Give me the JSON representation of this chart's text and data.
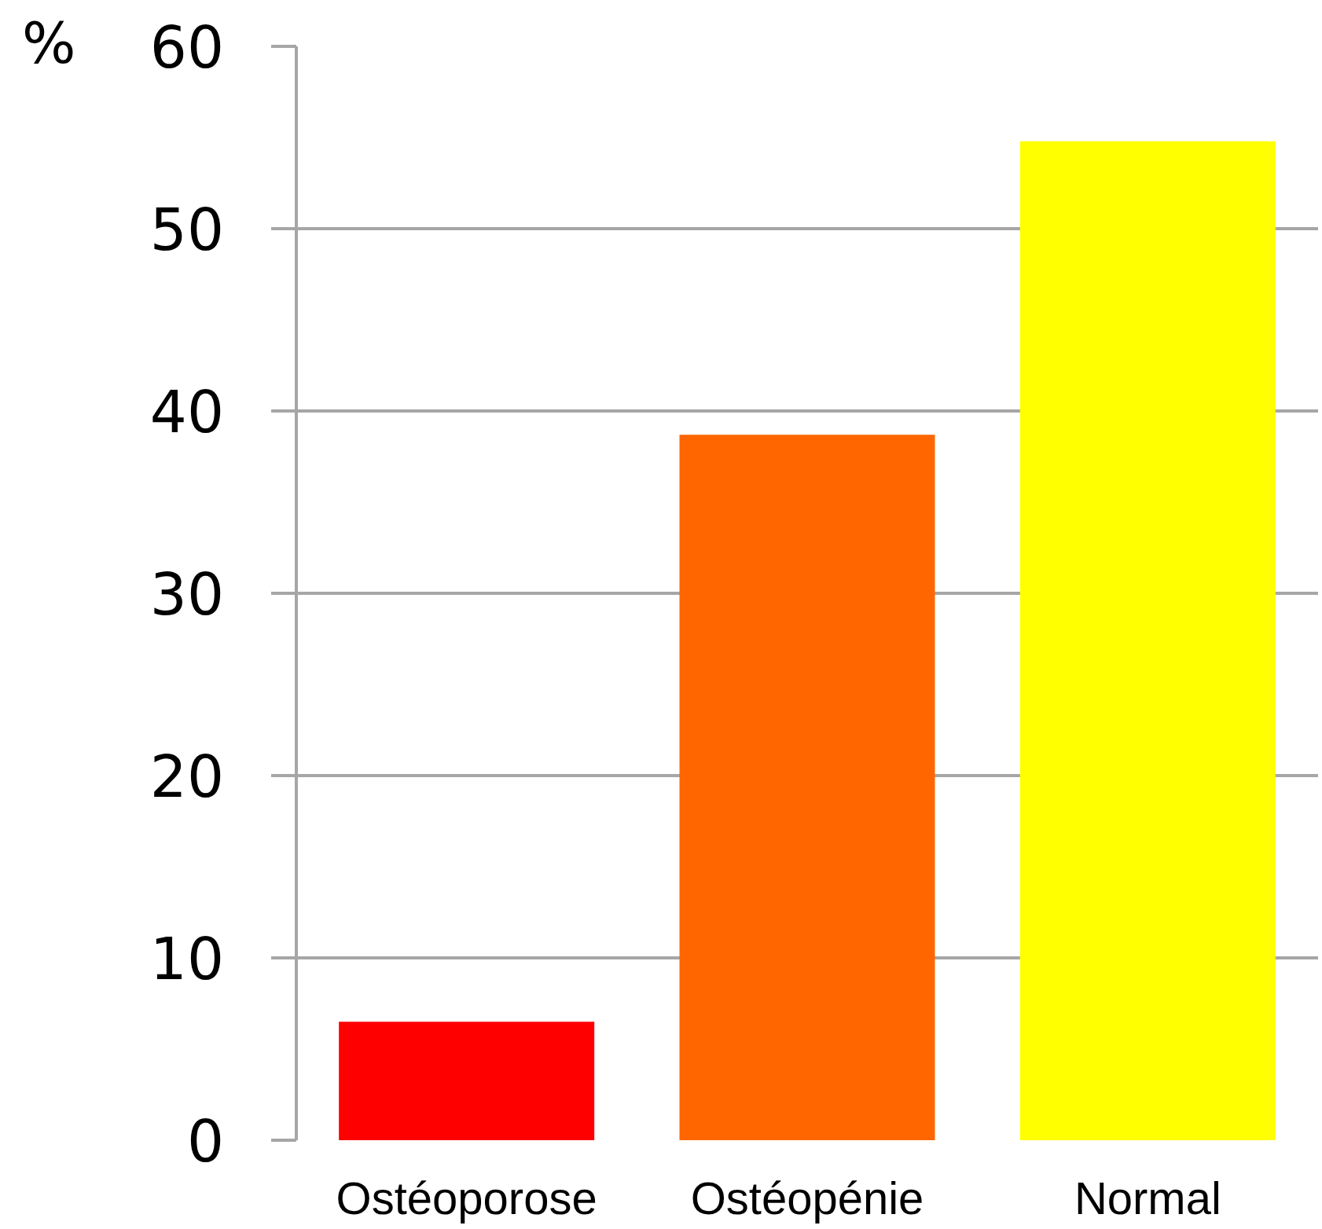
{
  "chart_data": {
    "type": "bar",
    "ylabel": "%",
    "categories": [
      "Ostéoporose",
      "Ostéopénie",
      "Normal"
    ],
    "values": [
      6.5,
      38.7,
      54.8
    ],
    "colors": [
      "#ff0000",
      "#ff6600",
      "#ffff00"
    ],
    "ylim": [
      0,
      60
    ],
    "yticks": [
      0,
      10,
      20,
      30,
      40,
      50,
      60
    ],
    "grid": "y"
  }
}
